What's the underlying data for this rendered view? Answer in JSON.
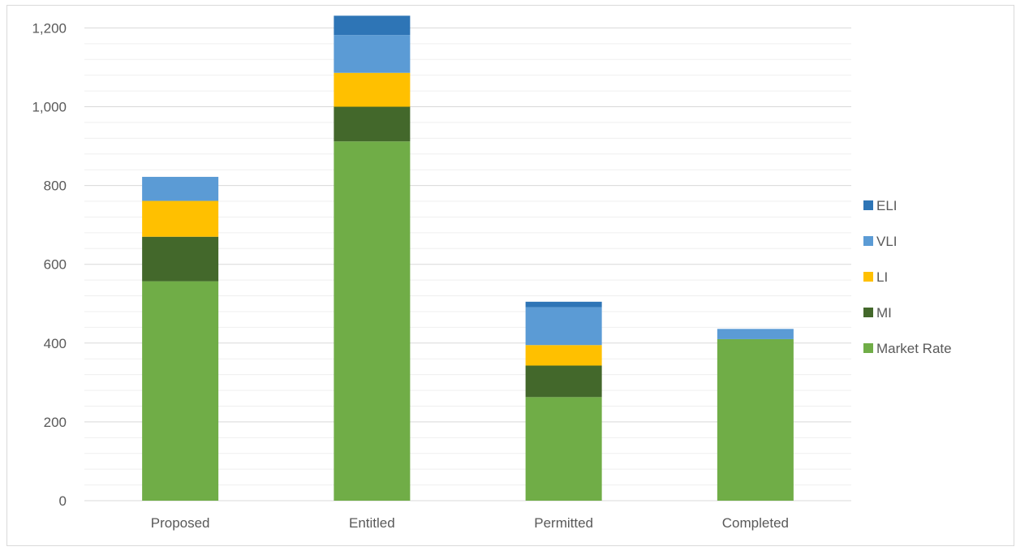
{
  "chart_data": {
    "type": "bar",
    "stacked": true,
    "categories": [
      "Proposed",
      "Entitled",
      "Permitted",
      "Completed"
    ],
    "series": [
      {
        "name": "Market Rate",
        "color": "#70ad47",
        "values": [
          557,
          912,
          263,
          410
        ]
      },
      {
        "name": "MI",
        "color": "#43682b",
        "values": [
          113,
          88,
          80,
          0
        ]
      },
      {
        "name": "LI",
        "color": "#ffc000",
        "values": [
          91,
          86,
          52,
          0
        ]
      },
      {
        "name": "VLI",
        "color": "#5b9bd5",
        "values": [
          61,
          96,
          96,
          26
        ]
      },
      {
        "name": "ELI",
        "color": "#2e75b6",
        "values": [
          0,
          49,
          14,
          0
        ]
      }
    ],
    "ylim": [
      0,
      1240
    ],
    "yticks": [
      0,
      200,
      400,
      600,
      800,
      1000,
      1200
    ],
    "ytick_labels": [
      "0",
      "200",
      "400",
      "600",
      "800",
      "1,000",
      "1,200"
    ],
    "grid": "major and minor horizontal",
    "legend_position": "right"
  }
}
